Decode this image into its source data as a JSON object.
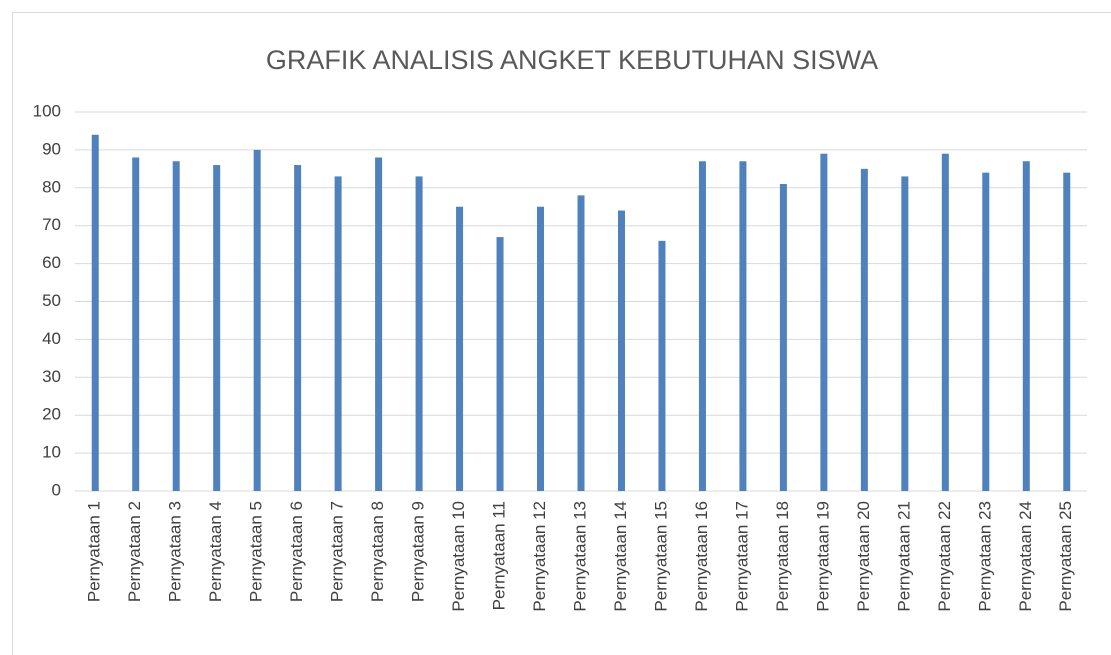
{
  "chart_data": {
    "type": "bar",
    "title": "GRAFIK ANALISIS ANGKET KEBUTUHAN SISWA",
    "categories": [
      "Pernyataan 1",
      "Pernyataan 2",
      "Pernyataan 3",
      "Pernyataan 4",
      "Pernyataan 5",
      "Pernyataan 6",
      "Pernyataan 7",
      "Pernyataan 8",
      "Pernyataan 9",
      "Pernyataan 10",
      "Pernyataan 11",
      "Pernyataan 12",
      "Pernyataan 13",
      "Pernyataan 14",
      "Pernyataan 15",
      "Pernyataan 16",
      "Pernyataan 17",
      "Pernyataan 18",
      "Pernyataan 19",
      "Pernyataan 20",
      "Pernyataan 21",
      "Pernyataan 22",
      "Pernyataan 23",
      "Pernyataan 24",
      "Pernyataan 25"
    ],
    "values": [
      94,
      88,
      87,
      86,
      90,
      86,
      83,
      88,
      83,
      75,
      67,
      75,
      78,
      74,
      66,
      87,
      87,
      81,
      89,
      85,
      83,
      89,
      84,
      87,
      84
    ],
    "color": "#4f81bd",
    "ylim": [
      0,
      100
    ],
    "yticks": [
      0,
      10,
      20,
      30,
      40,
      50,
      60,
      70,
      80,
      90,
      100
    ],
    "grid": true
  }
}
